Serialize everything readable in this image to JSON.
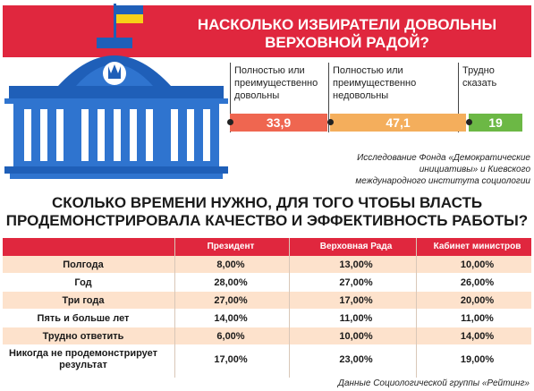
{
  "header": {
    "title": "НАСКОЛЬКО ИЗБИРАТЕЛИ ДОВОЛЬНЫ ВЕРХОВНОЙ РАДОЙ?"
  },
  "satisfaction": {
    "segments": [
      {
        "label": "Полностью или преимущественно довольны",
        "value": "33,9",
        "color": "#ef6650"
      },
      {
        "label": "Полностью или преимущественно недовольны",
        "value": "47,1",
        "color": "#f4ae5c"
      },
      {
        "label": "Трудно сказать",
        "value": "19",
        "color": "#6cb845"
      }
    ],
    "source": "Исследование Фонда «Демократические инициативы» и Киевского международного института социологии"
  },
  "chart_data": {
    "type": "table",
    "title": "СКОЛЬКО ВРЕМЕНИ НУЖНО, ДЛЯ ТОГО ЧТОБЫ ВЛАСТЬ ПРОДЕМОНСТРИРОВАЛА КАЧЕСТВО И ЭФФЕКТИВНОСТЬ РАБОТЫ?",
    "columns": [
      "Президент",
      "Верховная Рада",
      "Кабинет министров"
    ],
    "rows": [
      {
        "label": "Полгода",
        "values": [
          "8,00%",
          "13,00%",
          "10,00%"
        ]
      },
      {
        "label": "Год",
        "values": [
          "28,00%",
          "27,00%",
          "26,00%"
        ]
      },
      {
        "label": "Три года",
        "values": [
          "27,00%",
          "17,00%",
          "20,00%"
        ]
      },
      {
        "label": "Пять и больше лет",
        "values": [
          "14,00%",
          "11,00%",
          "11,00%"
        ]
      },
      {
        "label": "Трудно ответить",
        "values": [
          "6,00%",
          "10,00%",
          "14,00%"
        ]
      },
      {
        "label": "Никогда не продемонстрирует результат",
        "values": [
          "17,00%",
          "23,00%",
          "19,00%"
        ]
      }
    ],
    "source": "Данные Социологической группы «Рейтинг»"
  },
  "colors": {
    "brand_red": "#e0273e",
    "row_tint": "#fde2cc",
    "flag_blue": "#1f5fb8",
    "flag_yellow": "#f7d117",
    "building_blue": "#1f5fb8"
  }
}
